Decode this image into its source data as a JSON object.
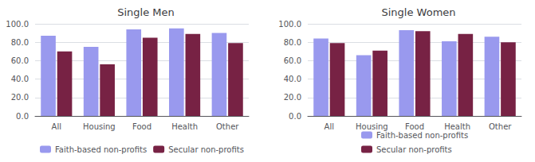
{
  "chart_data": [
    {
      "type": "bar",
      "title": "Single Men",
      "categories": [
        "All",
        "Housing",
        "Food",
        "Health",
        "Other"
      ],
      "series": [
        {
          "name": "Faith-based non-profits",
          "color": "#9999ee",
          "values": [
            87,
            75,
            94,
            95,
            90
          ]
        },
        {
          "name": "Secular non-profits",
          "color": "#772244",
          "values": [
            70,
            56,
            85,
            89,
            79
          ]
        }
      ],
      "ylim": [
        0,
        100
      ],
      "yticks": [
        {
          "value": 0,
          "label": "0.0"
        },
        {
          "value": 20,
          "label": "20.0"
        },
        {
          "value": 40,
          "label": "40.0"
        },
        {
          "value": 60,
          "label": "60.0"
        },
        {
          "value": 80,
          "label": "80.0"
        },
        {
          "value": 100,
          "label": "100.0"
        }
      ],
      "grid": true,
      "legend": "bottom"
    },
    {
      "type": "bar",
      "title": "Single Women",
      "categories": [
        "All",
        "Housing",
        "Food",
        "Health",
        "Other"
      ],
      "series": [
        {
          "name": "Faith-based non-profits",
          "color": "#9999ee",
          "values": [
            84,
            66,
            93,
            81,
            86
          ]
        },
        {
          "name": "Secular non-profits",
          "color": "#772244",
          "values": [
            79,
            71,
            92,
            89,
            80
          ]
        }
      ],
      "ylim": [
        0,
        100
      ],
      "yticks": [
        {
          "value": 0,
          "label": "0.0"
        },
        {
          "value": 20,
          "label": "20.0"
        },
        {
          "value": 40,
          "label": "40.0"
        },
        {
          "value": 60,
          "label": "60.0"
        },
        {
          "value": 80,
          "label": "80.0"
        },
        {
          "value": 100,
          "label": "100.0"
        }
      ],
      "grid": true,
      "legend": "bottom"
    }
  ]
}
